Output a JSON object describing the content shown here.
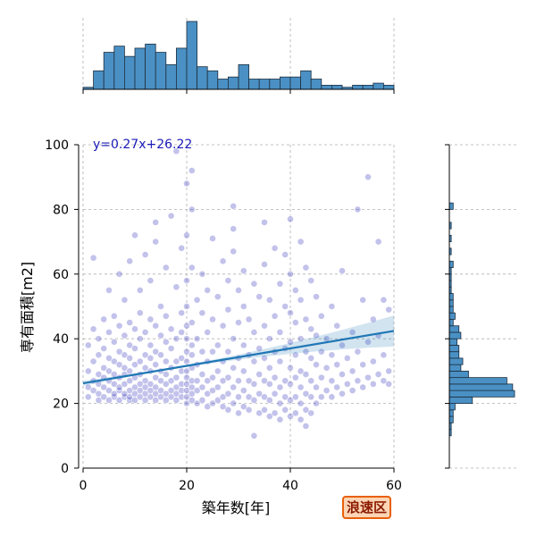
{
  "badge": "浪速区",
  "chart_data": {
    "type": "scatter",
    "xlabel": "築年数[年]",
    "ylabel": "専有面積[m2]",
    "xlim": [
      0,
      60
    ],
    "ylim": [
      0,
      100
    ],
    "xticks": [
      0,
      20,
      40,
      60
    ],
    "yticks": [
      0,
      20,
      40,
      60,
      80,
      100
    ],
    "grid": true,
    "regression": {
      "equation": "y=0.27x+26.22",
      "slope": 0.27,
      "intercept": 26.22,
      "color": "#1f77b4"
    },
    "point_color": "#2424b8",
    "hist_color": "#4a90c4",
    "points": [
      [
        1,
        22
      ],
      [
        1,
        25
      ],
      [
        1,
        30
      ],
      [
        1,
        38
      ],
      [
        2,
        24
      ],
      [
        2,
        27
      ],
      [
        2,
        33
      ],
      [
        2,
        43
      ],
      [
        2,
        65
      ],
      [
        3,
        21
      ],
      [
        3,
        23
      ],
      [
        3,
        26
      ],
      [
        3,
        29
      ],
      [
        3,
        35
      ],
      [
        3,
        40
      ],
      [
        4,
        22
      ],
      [
        4,
        25
      ],
      [
        4,
        28
      ],
      [
        4,
        31
      ],
      [
        4,
        37
      ],
      [
        4,
        46
      ],
      [
        5,
        21
      ],
      [
        5,
        24
      ],
      [
        5,
        27
      ],
      [
        5,
        30
      ],
      [
        5,
        34
      ],
      [
        5,
        42
      ],
      [
        5,
        55
      ],
      [
        6,
        22
      ],
      [
        6,
        23
      ],
      [
        6,
        26
      ],
      [
        6,
        29
      ],
      [
        6,
        33
      ],
      [
        6,
        39
      ],
      [
        6,
        47
      ],
      [
        7,
        21
      ],
      [
        7,
        24
      ],
      [
        7,
        25
      ],
      [
        7,
        28
      ],
      [
        7,
        32
      ],
      [
        7,
        36
      ],
      [
        7,
        44
      ],
      [
        7,
        60
      ],
      [
        8,
        22
      ],
      [
        8,
        23
      ],
      [
        8,
        26
      ],
      [
        8,
        29
      ],
      [
        8,
        31
      ],
      [
        8,
        35
      ],
      [
        8,
        41
      ],
      [
        8,
        52
      ],
      [
        9,
        21
      ],
      [
        9,
        22
      ],
      [
        9,
        24
      ],
      [
        9,
        27
      ],
      [
        9,
        30
      ],
      [
        9,
        34
      ],
      [
        9,
        38
      ],
      [
        9,
        45
      ],
      [
        9,
        64
      ],
      [
        10,
        21
      ],
      [
        10,
        23
      ],
      [
        10,
        25
      ],
      [
        10,
        28
      ],
      [
        10,
        32
      ],
      [
        10,
        37
      ],
      [
        10,
        43
      ],
      [
        10,
        72
      ],
      [
        11,
        22
      ],
      [
        11,
        24
      ],
      [
        11,
        26
      ],
      [
        11,
        29
      ],
      [
        11,
        33
      ],
      [
        11,
        40
      ],
      [
        11,
        48
      ],
      [
        11,
        55
      ],
      [
        12,
        21
      ],
      [
        12,
        23
      ],
      [
        12,
        25
      ],
      [
        12,
        27
      ],
      [
        12,
        31
      ],
      [
        12,
        35
      ],
      [
        12,
        42
      ],
      [
        12,
        66
      ],
      [
        13,
        22
      ],
      [
        13,
        24
      ],
      [
        13,
        26
      ],
      [
        13,
        30
      ],
      [
        13,
        34
      ],
      [
        13,
        38
      ],
      [
        13,
        46
      ],
      [
        13,
        58
      ],
      [
        14,
        21
      ],
      [
        14,
        23
      ],
      [
        14,
        25
      ],
      [
        14,
        28
      ],
      [
        14,
        32
      ],
      [
        14,
        36
      ],
      [
        14,
        44
      ],
      [
        14,
        76
      ],
      [
        14,
        70
      ],
      [
        15,
        22
      ],
      [
        15,
        24
      ],
      [
        15,
        27
      ],
      [
        15,
        30
      ],
      [
        15,
        35
      ],
      [
        15,
        41
      ],
      [
        15,
        50
      ],
      [
        16,
        21
      ],
      [
        16,
        23
      ],
      [
        16,
        26
      ],
      [
        16,
        29
      ],
      [
        16,
        33
      ],
      [
        16,
        39
      ],
      [
        16,
        47
      ],
      [
        16,
        62
      ],
      [
        17,
        22
      ],
      [
        17,
        24
      ],
      [
        17,
        27
      ],
      [
        17,
        31
      ],
      [
        17,
        37
      ],
      [
        17,
        43
      ],
      [
        17,
        78
      ],
      [
        18,
        21
      ],
      [
        18,
        23
      ],
      [
        18,
        25
      ],
      [
        18,
        28
      ],
      [
        18,
        33
      ],
      [
        18,
        40
      ],
      [
        18,
        56
      ],
      [
        18,
        98
      ],
      [
        19,
        22
      ],
      [
        19,
        24
      ],
      [
        19,
        26
      ],
      [
        19,
        30
      ],
      [
        19,
        34
      ],
      [
        19,
        42
      ],
      [
        19,
        48
      ],
      [
        19,
        68
      ],
      [
        20,
        20
      ],
      [
        20,
        22
      ],
      [
        20,
        24
      ],
      [
        20,
        26
      ],
      [
        20,
        28
      ],
      [
        20,
        30
      ],
      [
        20,
        33
      ],
      [
        20,
        36
      ],
      [
        20,
        40
      ],
      [
        20,
        44
      ],
      [
        20,
        50
      ],
      [
        20,
        58
      ],
      [
        20,
        72
      ],
      [
        20,
        88
      ],
      [
        21,
        21
      ],
      [
        21,
        23
      ],
      [
        21,
        25
      ],
      [
        21,
        27
      ],
      [
        21,
        31
      ],
      [
        21,
        35
      ],
      [
        21,
        38
      ],
      [
        21,
        45
      ],
      [
        21,
        62
      ],
      [
        21,
        80
      ],
      [
        21,
        92
      ],
      [
        22,
        20
      ],
      [
        22,
        24
      ],
      [
        22,
        27
      ],
      [
        22,
        32
      ],
      [
        22,
        40
      ],
      [
        22,
        52
      ],
      [
        23,
        21
      ],
      [
        23,
        25
      ],
      [
        23,
        29
      ],
      [
        23,
        36
      ],
      [
        23,
        48
      ],
      [
        23,
        60
      ],
      [
        24,
        19
      ],
      [
        24,
        23
      ],
      [
        24,
        27
      ],
      [
        24,
        33
      ],
      [
        24,
        42
      ],
      [
        24,
        55
      ],
      [
        25,
        20
      ],
      [
        25,
        24
      ],
      [
        25,
        28
      ],
      [
        25,
        36
      ],
      [
        25,
        46
      ],
      [
        25,
        71
      ],
      [
        26,
        21
      ],
      [
        26,
        25
      ],
      [
        26,
        30
      ],
      [
        26,
        38
      ],
      [
        26,
        53
      ],
      [
        27,
        19
      ],
      [
        27,
        22
      ],
      [
        27,
        27
      ],
      [
        27,
        33
      ],
      [
        27,
        44
      ],
      [
        27,
        64
      ],
      [
        28,
        18
      ],
      [
        28,
        23
      ],
      [
        28,
        28
      ],
      [
        28,
        36
      ],
      [
        28,
        49
      ],
      [
        28,
        58
      ],
      [
        29,
        20
      ],
      [
        29,
        25
      ],
      [
        29,
        31
      ],
      [
        29,
        40
      ],
      [
        29,
        74
      ],
      [
        29,
        81
      ],
      [
        29,
        67
      ],
      [
        30,
        17
      ],
      [
        30,
        22
      ],
      [
        30,
        27
      ],
      [
        30,
        34
      ],
      [
        30,
        45
      ],
      [
        30,
        55
      ],
      [
        31,
        19
      ],
      [
        31,
        24
      ],
      [
        31,
        30
      ],
      [
        31,
        38
      ],
      [
        31,
        50
      ],
      [
        31,
        61
      ],
      [
        32,
        18
      ],
      [
        32,
        22
      ],
      [
        32,
        27
      ],
      [
        32,
        35
      ],
      [
        32,
        46
      ],
      [
        33,
        10
      ],
      [
        33,
        21
      ],
      [
        33,
        26
      ],
      [
        33,
        33
      ],
      [
        33,
        42
      ],
      [
        33,
        57
      ],
      [
        34,
        17
      ],
      [
        34,
        23
      ],
      [
        34,
        29
      ],
      [
        34,
        37
      ],
      [
        34,
        53
      ],
      [
        35,
        18
      ],
      [
        35,
        22
      ],
      [
        35,
        27
      ],
      [
        35,
        34
      ],
      [
        35,
        44
      ],
      [
        35,
        63
      ],
      [
        35,
        76
      ],
      [
        36,
        16
      ],
      [
        36,
        21
      ],
      [
        36,
        26
      ],
      [
        36,
        31
      ],
      [
        36,
        40
      ],
      [
        36,
        52
      ],
      [
        37,
        17
      ],
      [
        37,
        23
      ],
      [
        37,
        28
      ],
      [
        37,
        36
      ],
      [
        37,
        47
      ],
      [
        37,
        68
      ],
      [
        38,
        15
      ],
      [
        38,
        20
      ],
      [
        38,
        25
      ],
      [
        38,
        33
      ],
      [
        38,
        42
      ],
      [
        38,
        57
      ],
      [
        39,
        18
      ],
      [
        39,
        22
      ],
      [
        39,
        27
      ],
      [
        39,
        37
      ],
      [
        39,
        50
      ],
      [
        39,
        66
      ],
      [
        40,
        16
      ],
      [
        40,
        21
      ],
      [
        40,
        26
      ],
      [
        40,
        31
      ],
      [
        40,
        39
      ],
      [
        40,
        48
      ],
      [
        40,
        60
      ],
      [
        40,
        77
      ],
      [
        41,
        17
      ],
      [
        41,
        22
      ],
      [
        41,
        28
      ],
      [
        41,
        35
      ],
      [
        41,
        45
      ],
      [
        41,
        55
      ],
      [
        42,
        15
      ],
      [
        42,
        20
      ],
      [
        42,
        25
      ],
      [
        42,
        30
      ],
      [
        42,
        40
      ],
      [
        42,
        52
      ],
      [
        42,
        70
      ],
      [
        43,
        13
      ],
      [
        43,
        18
      ],
      [
        43,
        23
      ],
      [
        43,
        29
      ],
      [
        43,
        36
      ],
      [
        43,
        46
      ],
      [
        43,
        62
      ],
      [
        44,
        17
      ],
      [
        44,
        22
      ],
      [
        44,
        27
      ],
      [
        44,
        34
      ],
      [
        44,
        43
      ],
      [
        44,
        58
      ],
      [
        45,
        20
      ],
      [
        45,
        25
      ],
      [
        45,
        32
      ],
      [
        45,
        41
      ],
      [
        45,
        53
      ],
      [
        46,
        22
      ],
      [
        46,
        28
      ],
      [
        46,
        36
      ],
      [
        46,
        47
      ],
      [
        47,
        24
      ],
      [
        47,
        31
      ],
      [
        47,
        40
      ],
      [
        48,
        22
      ],
      [
        48,
        27
      ],
      [
        48,
        35
      ],
      [
        48,
        50
      ],
      [
        49,
        25
      ],
      [
        49,
        32
      ],
      [
        49,
        44
      ],
      [
        50,
        23
      ],
      [
        50,
        29
      ],
      [
        50,
        38
      ],
      [
        50,
        61
      ],
      [
        51,
        26
      ],
      [
        51,
        34
      ],
      [
        52,
        24
      ],
      [
        52,
        30
      ],
      [
        52,
        42
      ],
      [
        53,
        27
      ],
      [
        53,
        36
      ],
      [
        53,
        80
      ],
      [
        54,
        25
      ],
      [
        54,
        32
      ],
      [
        54,
        52
      ],
      [
        55,
        28
      ],
      [
        55,
        39
      ],
      [
        55,
        90
      ],
      [
        56,
        26
      ],
      [
        56,
        33
      ],
      [
        56,
        46
      ],
      [
        57,
        29
      ],
      [
        57,
        41
      ],
      [
        57,
        70
      ],
      [
        58,
        27
      ],
      [
        58,
        35
      ],
      [
        58,
        52
      ],
      [
        59,
        30
      ],
      [
        59,
        49
      ],
      [
        59,
        26
      ]
    ],
    "x_histogram": {
      "bins": [
        0,
        2,
        4,
        6,
        8,
        10,
        12,
        14,
        16,
        18,
        20,
        22,
        24,
        26,
        28,
        30,
        32,
        34,
        36,
        38,
        40,
        42,
        44,
        46,
        48,
        50,
        52,
        54,
        56,
        58,
        60
      ],
      "counts": [
        1,
        9,
        18,
        21,
        16,
        20,
        22,
        18,
        12,
        20,
        33,
        11,
        9,
        5,
        6,
        12,
        5,
        5,
        5,
        6,
        6,
        9,
        5,
        2,
        2,
        1,
        2,
        2,
        3,
        2,
        1
      ]
    },
    "y_histogram": {
      "bins": [
        10,
        12,
        14,
        16,
        18,
        20,
        22,
        24,
        26,
        28,
        30,
        32,
        34,
        36,
        38,
        40,
        42,
        44,
        46,
        48,
        50,
        52,
        54,
        56,
        58,
        60,
        62,
        64,
        66,
        68,
        70,
        72,
        74,
        76,
        78,
        80,
        82
      ],
      "counts": [
        1,
        1,
        2,
        2,
        3,
        12,
        34,
        33,
        30,
        10,
        6,
        7,
        5,
        5,
        4,
        6,
        5,
        2,
        3,
        2,
        2,
        2,
        1,
        1,
        1,
        1,
        2,
        0,
        1,
        0,
        1,
        0,
        1,
        0,
        0,
        2,
        0
      ]
    }
  }
}
